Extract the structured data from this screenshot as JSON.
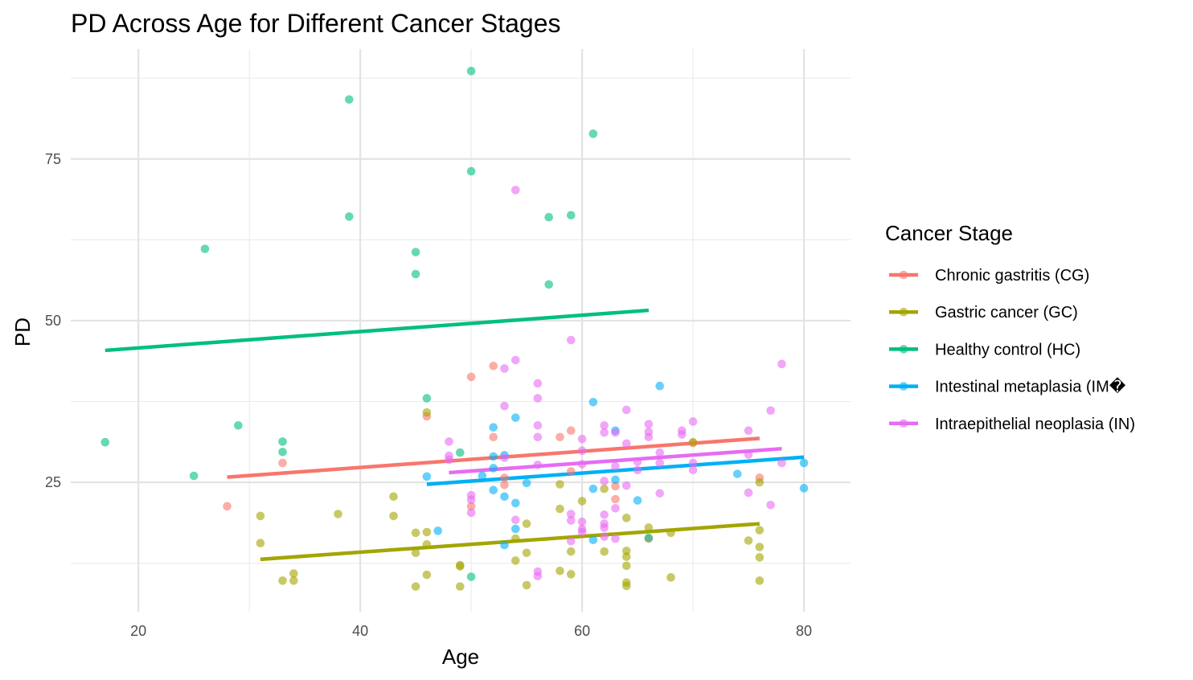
{
  "chart_data": {
    "type": "scatter",
    "title": "PD Across Age for Different Cancer Stages",
    "xlabel": "Age",
    "ylabel": "PD",
    "xlim": [
      13.9,
      84.2
    ],
    "ylim": [
      5.0,
      92.0
    ],
    "x_ticks": [
      20,
      40,
      60,
      80
    ],
    "y_ticks": [
      25,
      50,
      75
    ],
    "grid": true,
    "legend": {
      "title": "Cancer Stage",
      "position": "right"
    },
    "series": [
      {
        "name": "Chronic gastritis (CG)",
        "color": "#F8766D",
        "trend": {
          "x": [
            28,
            76
          ],
          "y": [
            25.8,
            31.8
          ]
        },
        "points": [
          [
            28,
            21.3
          ],
          [
            33,
            28.0
          ],
          [
            46,
            35.2
          ],
          [
            50,
            41.3
          ],
          [
            50,
            21.3
          ],
          [
            52,
            43.0
          ],
          [
            52,
            32.0
          ],
          [
            53,
            25.7
          ],
          [
            53,
            24.6
          ],
          [
            58,
            32.0
          ],
          [
            59,
            33.0
          ],
          [
            59,
            26.7
          ],
          [
            63,
            24.4
          ],
          [
            63,
            22.4
          ],
          [
            66,
            16.3
          ],
          [
            70,
            31.1
          ],
          [
            76,
            25.7
          ]
        ]
      },
      {
        "name": "Gastric cancer (GC)",
        "color": "#A3A500",
        "trend": {
          "x": [
            31,
            76
          ],
          "y": [
            13.1,
            18.6
          ]
        },
        "points": [
          [
            31,
            19.8
          ],
          [
            31,
            15.6
          ],
          [
            33,
            9.8
          ],
          [
            34,
            10.9
          ],
          [
            34,
            9.8
          ],
          [
            38,
            20.1
          ],
          [
            43,
            22.8
          ],
          [
            43,
            19.8
          ],
          [
            45,
            17.2
          ],
          [
            45,
            14.1
          ],
          [
            45,
            8.9
          ],
          [
            46,
            35.8
          ],
          [
            46,
            17.3
          ],
          [
            46,
            15.4
          ],
          [
            46,
            10.7
          ],
          [
            49,
            12.2
          ],
          [
            49,
            12.0
          ],
          [
            49,
            8.9
          ],
          [
            54,
            16.3
          ],
          [
            54,
            12.9
          ],
          [
            55,
            18.6
          ],
          [
            55,
            14.1
          ],
          [
            55,
            9.1
          ],
          [
            58,
            24.7
          ],
          [
            58,
            20.9
          ],
          [
            58,
            11.3
          ],
          [
            59,
            14.3
          ],
          [
            59,
            10.8
          ],
          [
            60,
            22.1
          ],
          [
            62,
            24.0
          ],
          [
            62,
            14.3
          ],
          [
            64,
            19.5
          ],
          [
            64,
            14.4
          ],
          [
            64,
            13.5
          ],
          [
            64,
            12.1
          ],
          [
            64,
            9.5
          ],
          [
            64,
            9.0
          ],
          [
            66,
            18.0
          ],
          [
            68,
            17.2
          ],
          [
            68,
            10.3
          ],
          [
            70,
            31.2
          ],
          [
            75,
            16.0
          ],
          [
            76,
            25.0
          ],
          [
            76,
            17.6
          ],
          [
            76,
            15.0
          ],
          [
            76,
            13.4
          ],
          [
            76,
            9.8
          ]
        ]
      },
      {
        "name": "Healthy control (HC)",
        "color": "#00BF7D",
        "trend": {
          "x": [
            17,
            66
          ],
          "y": [
            45.4,
            51.6
          ]
        },
        "points": [
          [
            17,
            31.2
          ],
          [
            25,
            26.0
          ],
          [
            26,
            61.1
          ],
          [
            29,
            33.8
          ],
          [
            33,
            31.3
          ],
          [
            33,
            29.7
          ],
          [
            39,
            84.2
          ],
          [
            39,
            66.1
          ],
          [
            45,
            60.6
          ],
          [
            45,
            57.2
          ],
          [
            46,
            38.0
          ],
          [
            49,
            29.6
          ],
          [
            50,
            88.6
          ],
          [
            50,
            73.1
          ],
          [
            50,
            10.4
          ],
          [
            57,
            66.0
          ],
          [
            57,
            55.6
          ],
          [
            59,
            66.3
          ],
          [
            61,
            78.9
          ],
          [
            66,
            16.4
          ]
        ]
      },
      {
        "name": "Intestinal metaplasia (IM�",
        "color": "#00B0F6",
        "trend": {
          "x": [
            46,
            80
          ],
          "y": [
            24.7,
            28.9
          ]
        },
        "points": [
          [
            46,
            25.9
          ],
          [
            47,
            17.5
          ],
          [
            51,
            26.0
          ],
          [
            52,
            33.5
          ],
          [
            52,
            29.0
          ],
          [
            52,
            27.2
          ],
          [
            52,
            23.8
          ],
          [
            53,
            29.2
          ],
          [
            53,
            22.8
          ],
          [
            53,
            15.3
          ],
          [
            54,
            35.0
          ],
          [
            54,
            21.8
          ],
          [
            54,
            17.8
          ],
          [
            55,
            24.9
          ],
          [
            61,
            37.4
          ],
          [
            61,
            24.0
          ],
          [
            61,
            16.1
          ],
          [
            63,
            33.0
          ],
          [
            63,
            25.4
          ],
          [
            65,
            22.2
          ],
          [
            67,
            39.9
          ],
          [
            74,
            26.3
          ],
          [
            80,
            28.0
          ],
          [
            80,
            24.1
          ]
        ]
      },
      {
        "name": "Intraepithelial neoplasia (IN)",
        "color": "#E76BF3",
        "trend": {
          "x": [
            48,
            78
          ],
          "y": [
            26.5,
            30.2
          ]
        },
        "points": [
          [
            48,
            31.3
          ],
          [
            48,
            29.1
          ],
          [
            48,
            28.5
          ],
          [
            50,
            23.0
          ],
          [
            50,
            22.3
          ],
          [
            50,
            20.3
          ],
          [
            53,
            42.6
          ],
          [
            53,
            36.8
          ],
          [
            53,
            28.8
          ],
          [
            54,
            70.2
          ],
          [
            54,
            43.9
          ],
          [
            54,
            19.2
          ],
          [
            56,
            40.3
          ],
          [
            56,
            38.0
          ],
          [
            56,
            33.8
          ],
          [
            56,
            32.0
          ],
          [
            56,
            27.7
          ],
          [
            56,
            11.2
          ],
          [
            56,
            10.5
          ],
          [
            59,
            47.0
          ],
          [
            59,
            20.1
          ],
          [
            59,
            19.1
          ],
          [
            59,
            15.9
          ],
          [
            60,
            31.7
          ],
          [
            60,
            29.9
          ],
          [
            60,
            27.8
          ],
          [
            60,
            18.9
          ],
          [
            60,
            17.8
          ],
          [
            60,
            17.3
          ],
          [
            62,
            33.8
          ],
          [
            62,
            32.7
          ],
          [
            62,
            25.2
          ],
          [
            62,
            20.0
          ],
          [
            62,
            18.6
          ],
          [
            62,
            18.0
          ],
          [
            62,
            16.6
          ],
          [
            63,
            32.7
          ],
          [
            63,
            27.5
          ],
          [
            63,
            21.0
          ],
          [
            63,
            16.3
          ],
          [
            64,
            36.2
          ],
          [
            64,
            31.0
          ],
          [
            64,
            24.5
          ],
          [
            65,
            28.2
          ],
          [
            65,
            26.9
          ],
          [
            66,
            34.0
          ],
          [
            66,
            32.8
          ],
          [
            66,
            32.0
          ],
          [
            67,
            29.6
          ],
          [
            67,
            28.0
          ],
          [
            67,
            23.3
          ],
          [
            69,
            33.0
          ],
          [
            69,
            32.4
          ],
          [
            70,
            34.4
          ],
          [
            70,
            28.0
          ],
          [
            70,
            26.9
          ],
          [
            75,
            33.0
          ],
          [
            75,
            29.3
          ],
          [
            75,
            23.4
          ],
          [
            77,
            36.1
          ],
          [
            77,
            21.5
          ],
          [
            78,
            43.3
          ],
          [
            78,
            28.0
          ]
        ]
      }
    ]
  }
}
